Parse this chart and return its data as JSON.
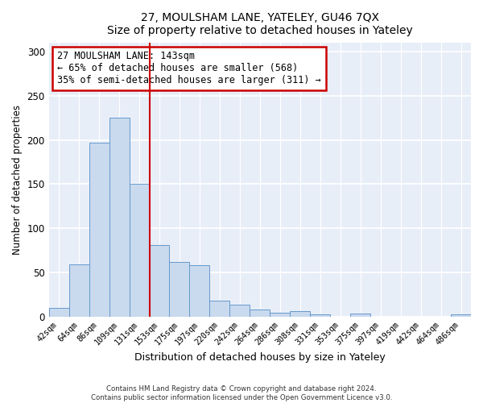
{
  "title1": "27, MOULSHAM LANE, YATELEY, GU46 7QX",
  "title2": "Size of property relative to detached houses in Yateley",
  "xlabel": "Distribution of detached houses by size in Yateley",
  "ylabel": "Number of detached properties",
  "bar_labels": [
    "42sqm",
    "64sqm",
    "86sqm",
    "109sqm",
    "131sqm",
    "153sqm",
    "175sqm",
    "197sqm",
    "220sqm",
    "242sqm",
    "264sqm",
    "286sqm",
    "308sqm",
    "331sqm",
    "353sqm",
    "375sqm",
    "397sqm",
    "419sqm",
    "442sqm",
    "464sqm",
    "486sqm"
  ],
  "bar_values": [
    10,
    59,
    197,
    225,
    150,
    81,
    62,
    58,
    18,
    13,
    8,
    4,
    6,
    2,
    0,
    3,
    0,
    0,
    0,
    0,
    2
  ],
  "bar_color": "#c9d9ee",
  "bar_edgecolor": "#6699cc",
  "vline_x_index": 4.5,
  "vline_color": "#cc0000",
  "annotation_text": "27 MOULSHAM LANE: 143sqm\n← 65% of detached houses are smaller (568)\n35% of semi-detached houses are larger (311) →",
  "annotation_box_edgecolor": "#cc0000",
  "annotation_box_facecolor": "#ffffff",
  "ylim": [
    0,
    310
  ],
  "yticks": [
    0,
    50,
    100,
    150,
    200,
    250,
    300
  ],
  "footer1": "Contains HM Land Registry data © Crown copyright and database right 2024.",
  "footer2": "Contains public sector information licensed under the Open Government Licence v3.0.",
  "bg_color": "#ffffff",
  "plot_bg_color": "#e8eef8"
}
